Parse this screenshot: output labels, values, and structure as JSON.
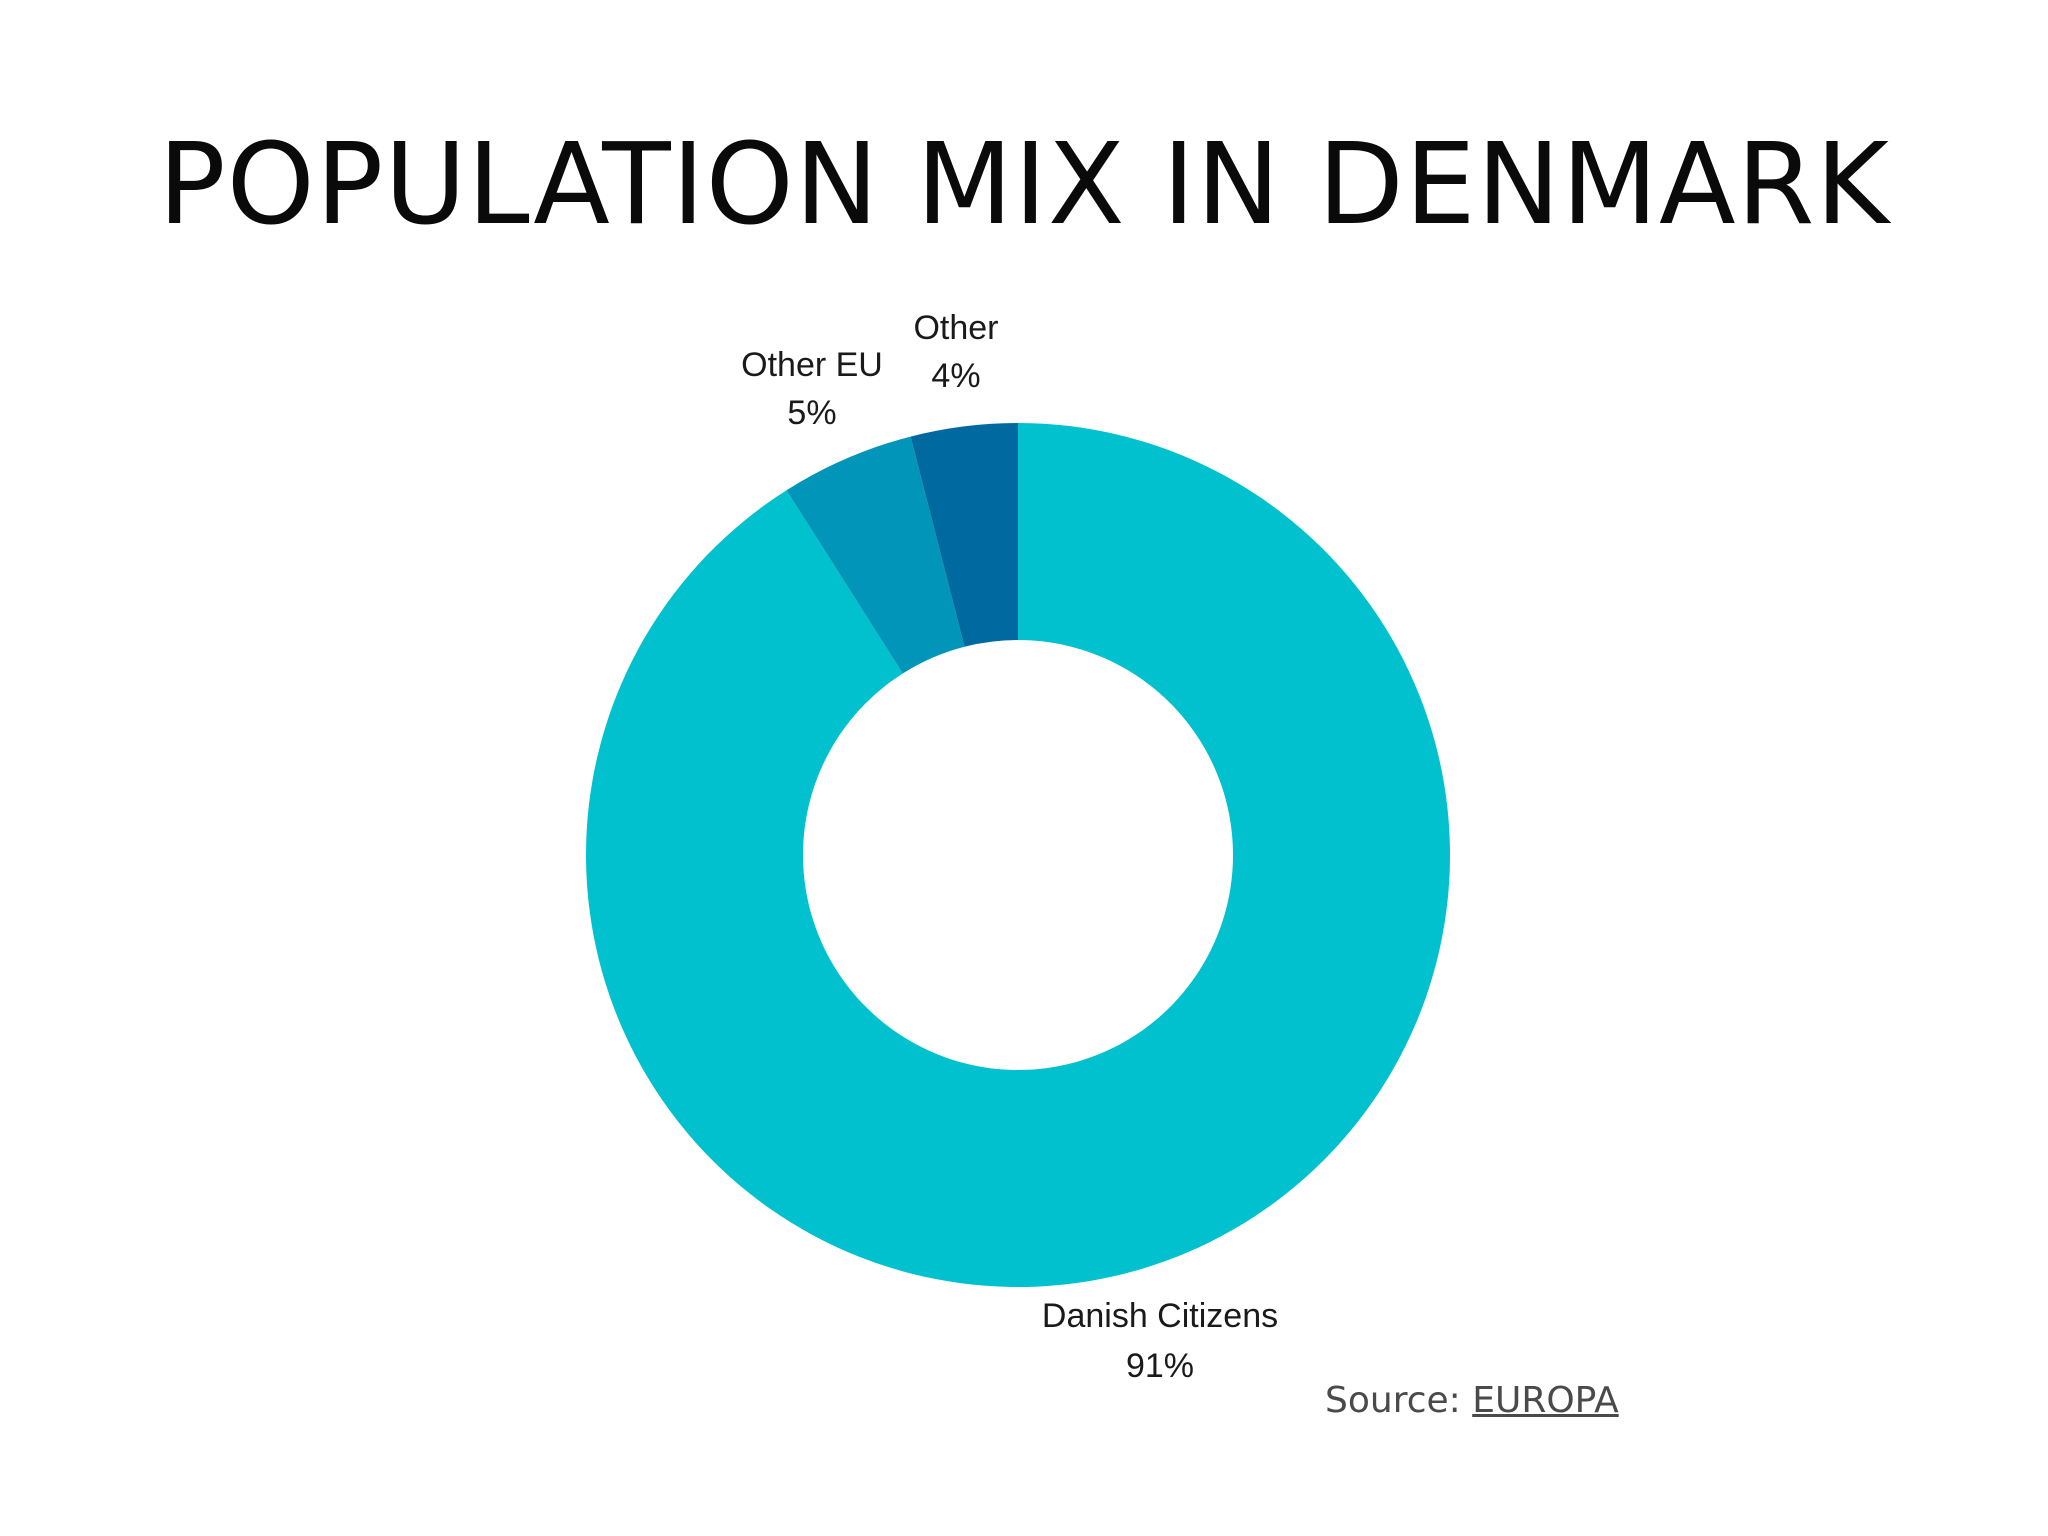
{
  "chart_data": {
    "type": "pie",
    "variant": "donut",
    "title": "POPULATION MIX IN DENMARK",
    "slices": [
      {
        "label": "Danish Citizens",
        "value": 91,
        "value_label": "91%",
        "color": "#00c1cd"
      },
      {
        "label": "Other EU",
        "value": 5,
        "value_label": "5%",
        "color": "#0095b9"
      },
      {
        "label": "Other",
        "value": 4,
        "value_label": "4%",
        "color": "#00699f"
      }
    ],
    "legend": "none",
    "label_position": "outside"
  },
  "source": {
    "prefix": "Source: ",
    "link_text": "EUROPA"
  },
  "colors": {
    "background": "#ffffff",
    "title": "#0a0a0a",
    "source_text": "#4a4a4a"
  }
}
